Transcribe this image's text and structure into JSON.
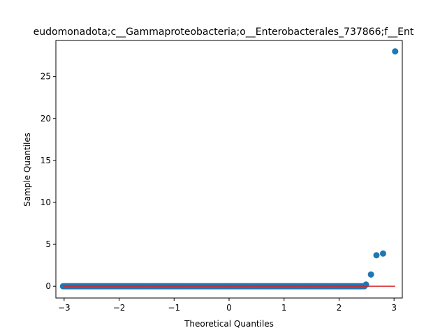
{
  "chart_data": {
    "type": "scatter",
    "title": "eudomonadota;c__Gammaproteobacteria;o__Enterobacterales_737866;f__Ent",
    "xlabel": "Theoretical Quantiles",
    "ylabel": "Sample Quantiles",
    "xlim": [
      -3.15,
      3.15
    ],
    "ylim": [
      -1.4,
      29.3
    ],
    "xticks": [
      -3,
      -2,
      -1,
      0,
      1,
      2,
      3
    ],
    "xtick_labels": [
      "−3",
      "−2",
      "−1",
      "0",
      "1",
      "2",
      "3"
    ],
    "yticks": [
      0,
      5,
      10,
      15,
      20,
      25
    ],
    "ytick_labels": [
      "0",
      "5",
      "10",
      "15",
      "20",
      "25"
    ],
    "grid": false,
    "point_color": "#1f77b4",
    "line_color": "#d62728",
    "reference_line": {
      "x": [
        -3.02,
        3.02
      ],
      "y": [
        0,
        0
      ]
    },
    "outliers": [
      {
        "x": 2.49,
        "y": 0.2
      },
      {
        "x": 2.58,
        "y": 1.4
      },
      {
        "x": 2.68,
        "y": 3.7
      },
      {
        "x": 2.8,
        "y": 3.9
      },
      {
        "x": 3.02,
        "y": 28.0
      }
    ],
    "dense_range": {
      "x_start": -3.02,
      "x_end": 2.46,
      "y": 0,
      "count": 260
    }
  }
}
